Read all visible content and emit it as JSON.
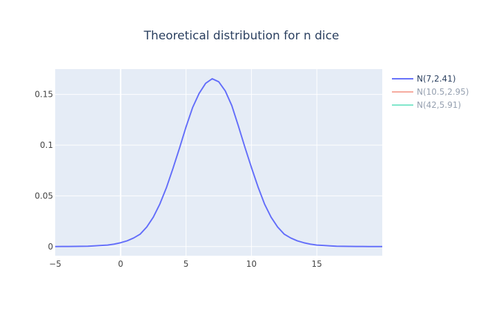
{
  "chart_data": {
    "type": "line",
    "title": "Theoretical distribution for n dice",
    "xlabel": "",
    "ylabel": "",
    "xlim": [
      -5,
      20
    ],
    "ylim": [
      -0.009,
      0.175
    ],
    "x_ticks": [
      -5,
      0,
      5,
      10,
      15
    ],
    "x_tick_labels": [
      "−5",
      "0",
      "5",
      "10",
      "15"
    ],
    "y_ticks": [
      0,
      0.05,
      0.1,
      0.15
    ],
    "y_tick_labels": [
      "0",
      "0.05",
      "0.1",
      "0.15"
    ],
    "grid": true,
    "legend_position": "top-right",
    "plot_background": "#e5ecf6",
    "series": [
      {
        "name": "N(7,2.41)",
        "color": "#636efa",
        "visible": true,
        "x": [
          -5,
          -4.5,
          -4,
          -3.5,
          -3,
          -2.5,
          -2,
          -1.5,
          -1,
          -0.5,
          0,
          0.5,
          1,
          1.5,
          2,
          2.5,
          3,
          3.5,
          4,
          4.5,
          5,
          5.5,
          6,
          6.5,
          7,
          7.5,
          8,
          8.5,
          9,
          9.5,
          10,
          10.5,
          11,
          11.5,
          12,
          12.5,
          13,
          13.5,
          14,
          14.5,
          15,
          15.5,
          16,
          16.5,
          17,
          17.5,
          18,
          18.5,
          19,
          19.5,
          20
        ],
        "y": [
          0.0,
          0.0001,
          0.0001,
          0.0002,
          0.0003,
          0.0004,
          0.0007,
          0.0011,
          0.0015,
          0.0024,
          0.0038,
          0.0057,
          0.0085,
          0.0123,
          0.0193,
          0.029,
          0.042,
          0.058,
          0.077,
          0.097,
          0.118,
          0.137,
          0.151,
          0.161,
          0.1655,
          0.1625,
          0.1535,
          0.139,
          0.119,
          0.098,
          0.078,
          0.059,
          0.042,
          0.029,
          0.0193,
          0.0123,
          0.0085,
          0.0057,
          0.0038,
          0.0024,
          0.0015,
          0.0011,
          0.0007,
          0.0004,
          0.0003,
          0.0002,
          0.0001,
          0.0001,
          0.0,
          0.0,
          0.0
        ]
      },
      {
        "name": "N(10.5,2.95)",
        "color": "#ef553b",
        "visible": false
      },
      {
        "name": "N(42,5.91)",
        "color": "#00cc96",
        "visible": false
      }
    ]
  }
}
